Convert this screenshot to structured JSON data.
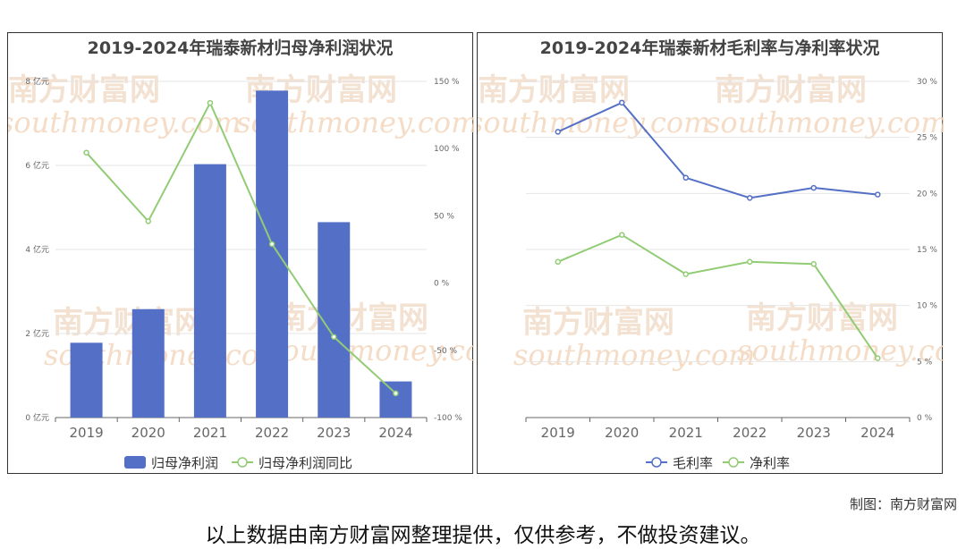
{
  "chart_data": [
    {
      "type": "bar",
      "title": "2019-2024年瑞泰新材归母净利润状况",
      "categories": [
        "2019",
        "2020",
        "2021",
        "2022",
        "2023",
        "2024"
      ],
      "series": [
        {
          "name": "归母净利润",
          "type": "bar",
          "axis": "left",
          "unit": "亿元",
          "values": [
            1.78,
            2.58,
            6.03,
            7.78,
            4.65,
            0.86
          ],
          "color": "#5470c6"
        },
        {
          "name": "归母净利润同比",
          "type": "line",
          "axis": "right",
          "unit": "%",
          "values": [
            97,
            46,
            134,
            29,
            -40,
            -82
          ],
          "color": "#91cc75"
        }
      ],
      "y_left": {
        "ticks": [
          "0 亿元",
          "2 亿元",
          "4 亿元",
          "6 亿元",
          "8 亿元"
        ],
        "range": [
          0,
          8
        ]
      },
      "y_right": {
        "ticks": [
          "-100 %",
          "-50 %",
          "0 %",
          "50 %",
          "100 %",
          "150 %"
        ],
        "range": [
          -100,
          150
        ]
      },
      "legend": "bottom"
    },
    {
      "type": "line",
      "title": "2019-2024年瑞泰新材毛利率与净利率状况",
      "categories": [
        "2019",
        "2020",
        "2021",
        "2022",
        "2023",
        "2024"
      ],
      "series": [
        {
          "name": "毛利率",
          "unit": "%",
          "values": [
            25.5,
            28.1,
            21.4,
            19.6,
            20.5,
            19.9
          ],
          "color": "#5470c6"
        },
        {
          "name": "净利率",
          "unit": "%",
          "values": [
            13.9,
            16.3,
            12.8,
            13.9,
            13.7,
            5.3
          ],
          "color": "#91cc75"
        }
      ],
      "y_right": {
        "ticks": [
          "0 %",
          "5 %",
          "10 %",
          "15 %",
          "20 %",
          "25 %",
          "30 %"
        ],
        "range": [
          0,
          30
        ]
      },
      "legend": "bottom"
    }
  ],
  "watermark": {
    "cn": "南方财富网",
    "en": "southmoney.com"
  },
  "credit": "制图：南方财富网",
  "footer": "以上数据由南方财富网整理提供，仅供参考，不做投资建议。"
}
